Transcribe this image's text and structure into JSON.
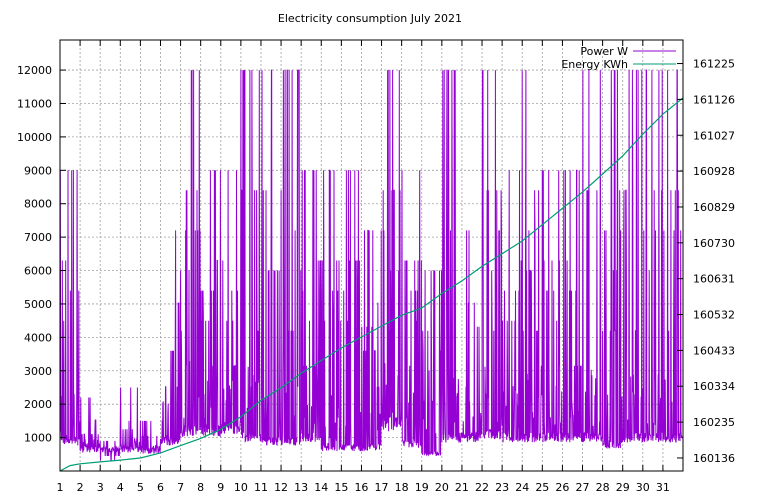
{
  "chart_data": {
    "type": "line",
    "title": "Electricity consumption July 2021",
    "xlabel": "",
    "ylabel": "",
    "y2label": "",
    "grid": true,
    "legend_position": "top-right",
    "x": {
      "range": [
        1,
        32
      ],
      "ticks": [
        1,
        2,
        3,
        4,
        5,
        6,
        7,
        8,
        9,
        10,
        11,
        12,
        13,
        14,
        15,
        16,
        17,
        18,
        19,
        20,
        21,
        22,
        23,
        24,
        25,
        26,
        27,
        28,
        29,
        30,
        31
      ],
      "tick_labels": [
        "1",
        "2",
        "3",
        "4",
        "5",
        "6",
        "7",
        "8",
        "9",
        "10",
        "11",
        "12",
        "13",
        "14",
        "15",
        "16",
        "17",
        "18",
        "19",
        "20",
        "21",
        "22",
        "23",
        "24",
        "25",
        "26",
        "27",
        "28",
        "29",
        "30",
        "31"
      ]
    },
    "y_left": {
      "range": [
        0,
        12900
      ],
      "ticks": [
        1000,
        2000,
        3000,
        4000,
        5000,
        6000,
        7000,
        8000,
        9000,
        10000,
        11000,
        12000
      ],
      "tick_labels": [
        "1000",
        "2000",
        "3000",
        "4000",
        "5000",
        "6000",
        "7000",
        "8000",
        "9000",
        "10000",
        "11000",
        "12000"
      ]
    },
    "y_right": {
      "range": [
        160100,
        161290
      ],
      "ticks": [
        160136,
        160235,
        160334,
        160433,
        160532,
        160631,
        160730,
        160829,
        160928,
        161027,
        161126,
        161225
      ],
      "tick_labels": [
        "160136",
        "160235",
        "160334",
        "160433",
        "160532",
        "160631",
        "160730",
        "160829",
        "160928",
        "161027",
        "161126",
        "161225"
      ]
    },
    "series": [
      {
        "name": "Power W",
        "axis": "left",
        "color": "#9400d3",
        "daily_profile": [
          {
            "day": 1,
            "base": 900,
            "peak": 9000
          },
          {
            "day": 2,
            "base": 650,
            "peak": 2200
          },
          {
            "day": 3,
            "base": 650,
            "peak": 900
          },
          {
            "day": 4,
            "base": 650,
            "peak": 2500
          },
          {
            "day": 5,
            "base": 600,
            "peak": 1500
          },
          {
            "day": 6,
            "base": 900,
            "peak": 7200
          },
          {
            "day": 7,
            "base": 1200,
            "peak": 12000
          },
          {
            "day": 8,
            "base": 1200,
            "peak": 9000
          },
          {
            "day": 9,
            "base": 1300,
            "peak": 9000
          },
          {
            "day": 10,
            "base": 1000,
            "peak": 12000
          },
          {
            "day": 11,
            "base": 900,
            "peak": 12000
          },
          {
            "day": 12,
            "base": 900,
            "peak": 12000
          },
          {
            "day": 13,
            "base": 1000,
            "peak": 9000
          },
          {
            "day": 14,
            "base": 700,
            "peak": 9000
          },
          {
            "day": 15,
            "base": 700,
            "peak": 9000
          },
          {
            "day": 16,
            "base": 700,
            "peak": 7200
          },
          {
            "day": 17,
            "base": 1400,
            "peak": 12000
          },
          {
            "day": 18,
            "base": 800,
            "peak": 9000
          },
          {
            "day": 19,
            "base": 500,
            "peak": 6000
          },
          {
            "day": 20,
            "base": 1000,
            "peak": 12000
          },
          {
            "day": 21,
            "base": 1000,
            "peak": 7200
          },
          {
            "day": 22,
            "base": 1100,
            "peak": 12000
          },
          {
            "day": 23,
            "base": 1000,
            "peak": 9000
          },
          {
            "day": 24,
            "base": 1000,
            "peak": 12000
          },
          {
            "day": 25,
            "base": 1000,
            "peak": 9000
          },
          {
            "day": 26,
            "base": 1000,
            "peak": 9000
          },
          {
            "day": 27,
            "base": 1000,
            "peak": 12000
          },
          {
            "day": 28,
            "base": 800,
            "peak": 12000
          },
          {
            "day": 29,
            "base": 1000,
            "peak": 12000
          },
          {
            "day": 30,
            "base": 1000,
            "peak": 12000
          },
          {
            "day": 31,
            "base": 1000,
            "peak": 12000
          }
        ]
      },
      {
        "name": "Energy KWh",
        "axis": "right",
        "color": "#009e73",
        "points": [
          [
            1.0,
            160100
          ],
          [
            1.5,
            160115
          ],
          [
            2.0,
            160120
          ],
          [
            3.0,
            160125
          ],
          [
            4.0,
            160130
          ],
          [
            5.0,
            160136
          ],
          [
            6.0,
            160150
          ],
          [
            7.0,
            160170
          ],
          [
            8.0,
            160190
          ],
          [
            9.0,
            160215
          ],
          [
            10.0,
            160250
          ],
          [
            11.0,
            160295
          ],
          [
            12.0,
            160330
          ],
          [
            13.0,
            160370
          ],
          [
            14.0,
            160405
          ],
          [
            15.0,
            160440
          ],
          [
            16.0,
            160470
          ],
          [
            17.0,
            160500
          ],
          [
            18.0,
            160530
          ],
          [
            19.0,
            160550
          ],
          [
            20.0,
            160590
          ],
          [
            21.0,
            160625
          ],
          [
            22.0,
            160665
          ],
          [
            23.0,
            160700
          ],
          [
            24.0,
            160735
          ],
          [
            25.0,
            160780
          ],
          [
            26.0,
            160825
          ],
          [
            27.0,
            160870
          ],
          [
            28.0,
            160920
          ],
          [
            29.0,
            160970
          ],
          [
            30.0,
            161030
          ],
          [
            31.0,
            161085
          ],
          [
            32.0,
            161130
          ]
        ]
      }
    ]
  }
}
